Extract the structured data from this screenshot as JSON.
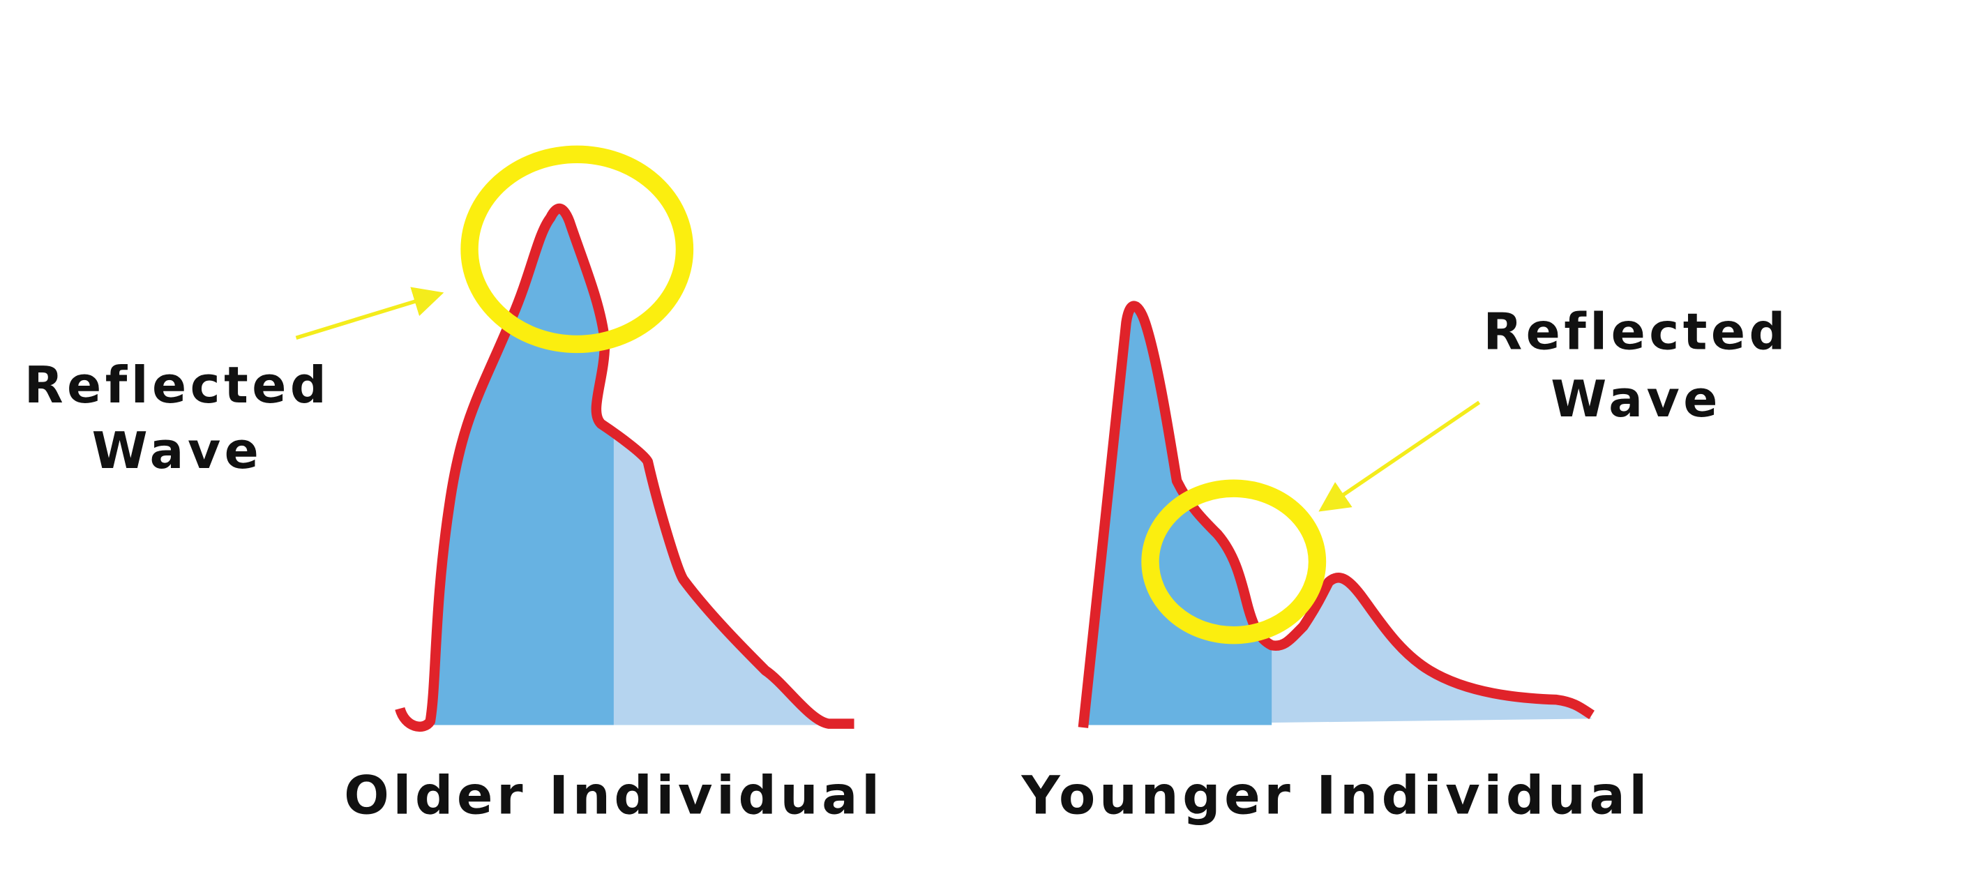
{
  "panels": [
    {
      "label": "Older Individual",
      "annotation": [
        "Reflected",
        "Wave"
      ]
    },
    {
      "label": "Younger Individual",
      "annotation": [
        "Reflected",
        "Wave"
      ]
    }
  ]
}
